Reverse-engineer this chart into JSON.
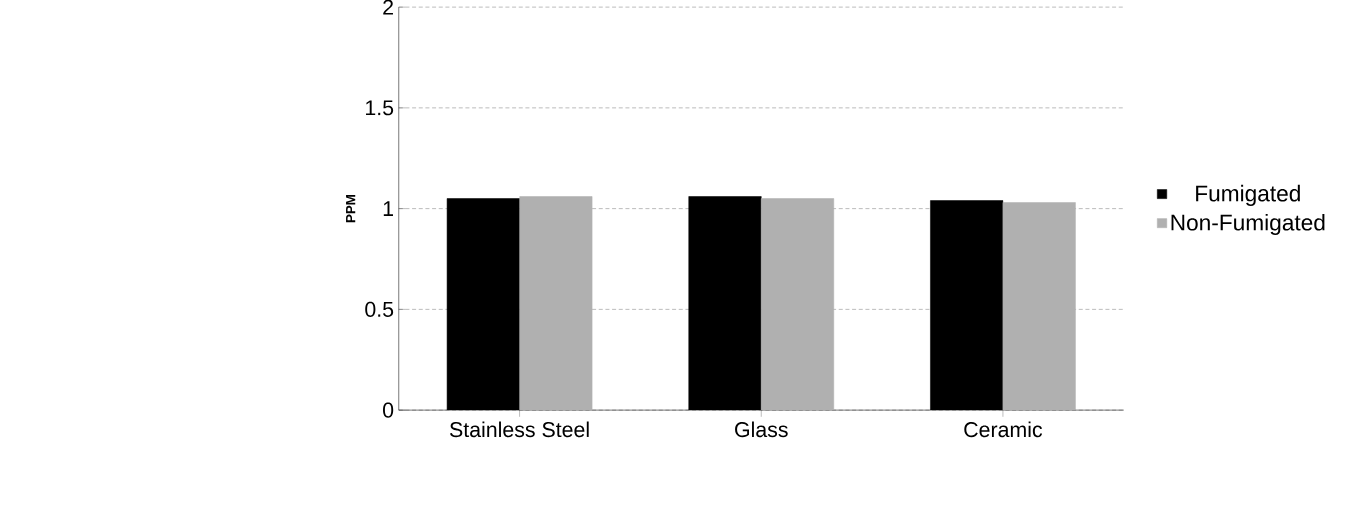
{
  "chart_data": {
    "type": "bar",
    "ylabel": "PPM",
    "categories": [
      "Stainless Steel",
      "Glass",
      "Ceramic"
    ],
    "series": [
      {
        "name": "Fumigated",
        "color": "#000000",
        "values": [
          1.05,
          1.06,
          1.04
        ]
      },
      {
        "name": "Non-Fumigated",
        "color": "#b0b0b0",
        "values": [
          1.06,
          1.05,
          1.03
        ]
      }
    ],
    "ylim": [
      0,
      2
    ],
    "yticks": [
      0,
      0.5,
      1,
      1.5,
      2
    ],
    "grid": "y",
    "legend": "right"
  }
}
